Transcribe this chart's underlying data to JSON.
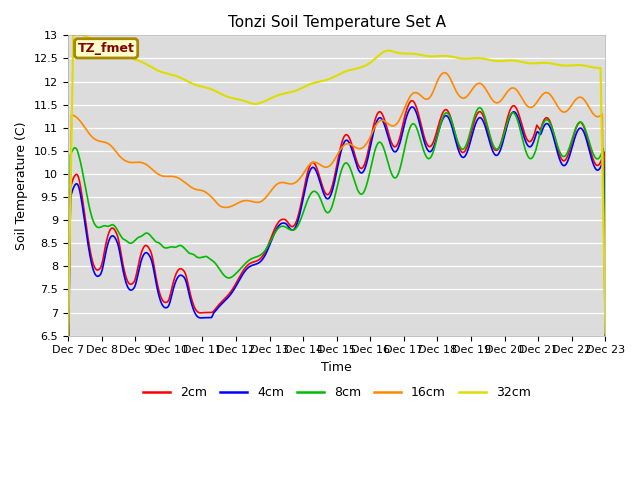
{
  "title": "Tonzi Soil Temperature Set A",
  "xlabel": "Time",
  "ylabel": "Soil Temperature (C)",
  "ylim": [
    6.5,
    13.0
  ],
  "yticks": [
    6.5,
    7.0,
    7.5,
    8.0,
    8.5,
    9.0,
    9.5,
    10.0,
    10.5,
    11.0,
    11.5,
    12.0,
    12.5,
    13.0
  ],
  "colors": {
    "2cm": "#ff0000",
    "4cm": "#0000ff",
    "8cm": "#00bb00",
    "16cm": "#ff8800",
    "32cm": "#dddd00"
  },
  "legend_label": "TZ_fmet",
  "legend_bg": "#ffffcc",
  "legend_border": "#aa8800",
  "plot_bg": "#dcdcdc",
  "n_days": 16,
  "start_day": 7,
  "tick_labels": [
    "Dec 7",
    "Dec 8",
    "Dec 9",
    "Dec 10",
    "Dec 11",
    "Dec 12",
    "Dec 13",
    "Dec 14",
    "Dec 15",
    "Dec 16",
    "Dec 17",
    "Dec 18",
    "Dec 19",
    "Dec 20",
    "Dec 21",
    "Dec 22"
  ],
  "title_fontsize": 11,
  "axis_fontsize": 9,
  "tick_fontsize": 8
}
